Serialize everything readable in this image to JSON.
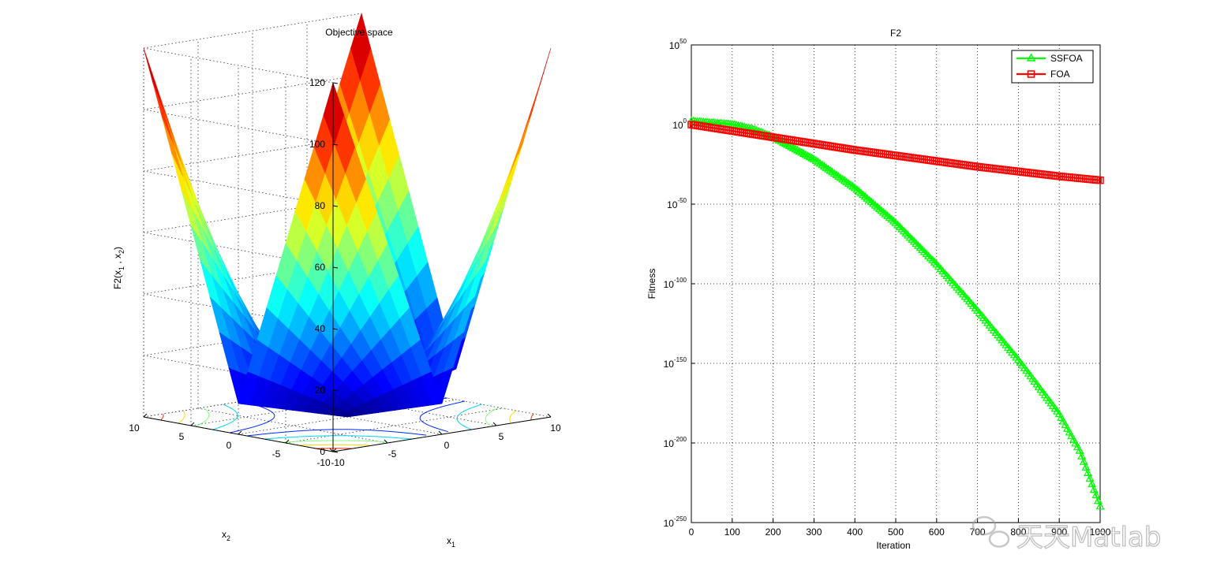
{
  "chart_data": [
    {
      "type": "surface",
      "title": "Objective space",
      "zlabel": {
        "base": "F2(x",
        "s1": "1",
        "mid": " , x",
        "s2": "2",
        "end": ")"
      },
      "xlabel": {
        "base": "x",
        "sub": "1"
      },
      "ylabel": {
        "base": "x",
        "sub": "2"
      },
      "zticks": [
        "0",
        "20",
        "40",
        "60",
        "80",
        "100",
        "120"
      ],
      "x1ticks": [
        "-10",
        "-5",
        "0",
        "5",
        "10"
      ],
      "x2ticks": [
        "-10",
        "-5",
        "0",
        "5",
        "10"
      ],
      "zlim": [
        0,
        120
      ],
      "x1lim": [
        -10,
        10
      ],
      "x2lim": [
        -10,
        10
      ],
      "function": "|x1| + |x2| + |x1|*|x2|",
      "colormap": "jet",
      "contour_levels": [
        20,
        40,
        60,
        80,
        100
      ]
    },
    {
      "type": "line",
      "title": "F2",
      "xlabel": "Iteration",
      "ylabel": "Fitness",
      "yscale": "log",
      "xlim": [
        0,
        1000
      ],
      "ylim_exp": [
        -250,
        50
      ],
      "xticks": [
        "0",
        "100",
        "200",
        "300",
        "400",
        "500",
        "600",
        "700",
        "800",
        "900",
        "1000"
      ],
      "yticks": [
        {
          "base": "10",
          "exp": "50"
        },
        {
          "base": "10",
          "exp": "0"
        },
        {
          "base": "10",
          "exp": "-50"
        },
        {
          "base": "10",
          "exp": "-100"
        },
        {
          "base": "10",
          "exp": "-150"
        },
        {
          "base": "10",
          "exp": "-200"
        },
        {
          "base": "10",
          "exp": "-250"
        }
      ],
      "grid": true,
      "legend_position": "top-right",
      "series": [
        {
          "name": "SSFOA",
          "color": "#00ff00",
          "marker": "triangle",
          "x_log10": [
            0,
            100,
            150,
            200,
            250,
            300,
            400,
            500,
            600,
            700,
            800,
            900,
            950,
            1000
          ],
          "y_log10": [
            2,
            0,
            -3,
            -8,
            -15,
            -22,
            -40,
            -62,
            -88,
            -117,
            -148,
            -182,
            -205,
            -240
          ]
        },
        {
          "name": "FOA",
          "color": "#ff0000",
          "marker": "square",
          "x_log10": [
            0,
            100,
            200,
            300,
            400,
            500,
            600,
            700,
            800,
            900,
            1000
          ],
          "y_log10": [
            0,
            -4,
            -8,
            -12,
            -16,
            -19.5,
            -23,
            -26.5,
            -29.5,
            -32.5,
            -35
          ]
        }
      ]
    }
  ],
  "watermark": {
    "text": "天天Matlab"
  }
}
